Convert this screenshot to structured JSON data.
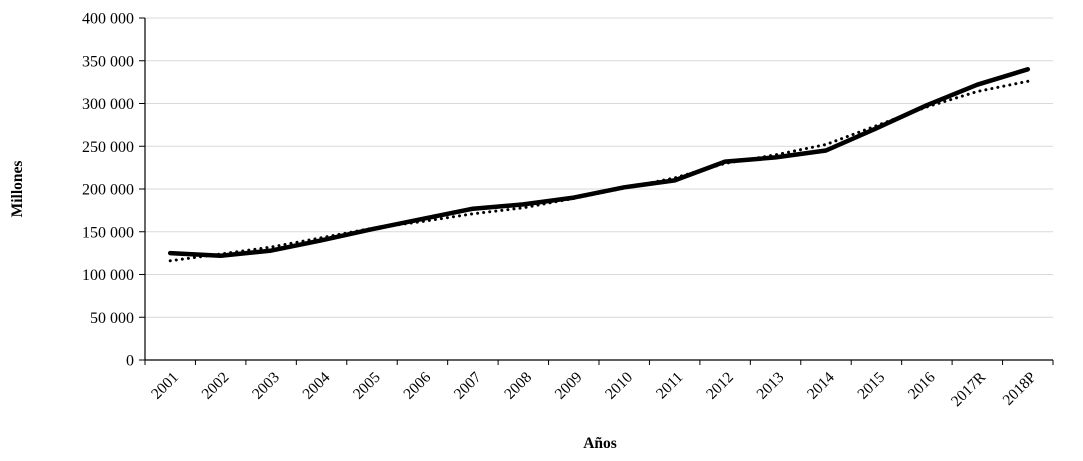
{
  "chart_data": {
    "type": "line",
    "title": "",
    "xlabel": "Años",
    "ylabel": "Millones",
    "categories": [
      "2001",
      "2002",
      "2003",
      "2004",
      "2005",
      "2006",
      "2007",
      "2008",
      "2009",
      "2010",
      "2011",
      "2012",
      "2013",
      "2014",
      "2015",
      "2016",
      "2017R",
      "2018P"
    ],
    "series": [
      {
        "name": "dotted-line",
        "line_style": "dotted",
        "values": [
          116000,
          124000,
          132000,
          143000,
          154000,
          162000,
          171000,
          178000,
          189000,
          201000,
          213000,
          230000,
          240000,
          252000,
          274000,
          296000,
          314000,
          326000
        ]
      },
      {
        "name": "solid-line",
        "line_style": "solid",
        "values": [
          125000,
          122000,
          128000,
          140000,
          153000,
          165000,
          177000,
          182000,
          190000,
          202000,
          210000,
          232000,
          237000,
          245000,
          271000,
          298000,
          322000,
          340000
        ]
      }
    ],
    "ylim": [
      0,
      400000
    ],
    "ytick_values": [
      0,
      50000,
      100000,
      150000,
      200000,
      250000,
      300000,
      350000,
      400000
    ],
    "ytick_labels": [
      "0",
      "50 000",
      "100 000",
      "150 000",
      "200 000",
      "250 000",
      "300 000",
      "350 000",
      "400 000"
    ],
    "grid": true,
    "legend": "none"
  },
  "colors": {
    "line": "#000000",
    "grid": "#d9d9d9",
    "axis": "#000000",
    "background": "#ffffff"
  }
}
